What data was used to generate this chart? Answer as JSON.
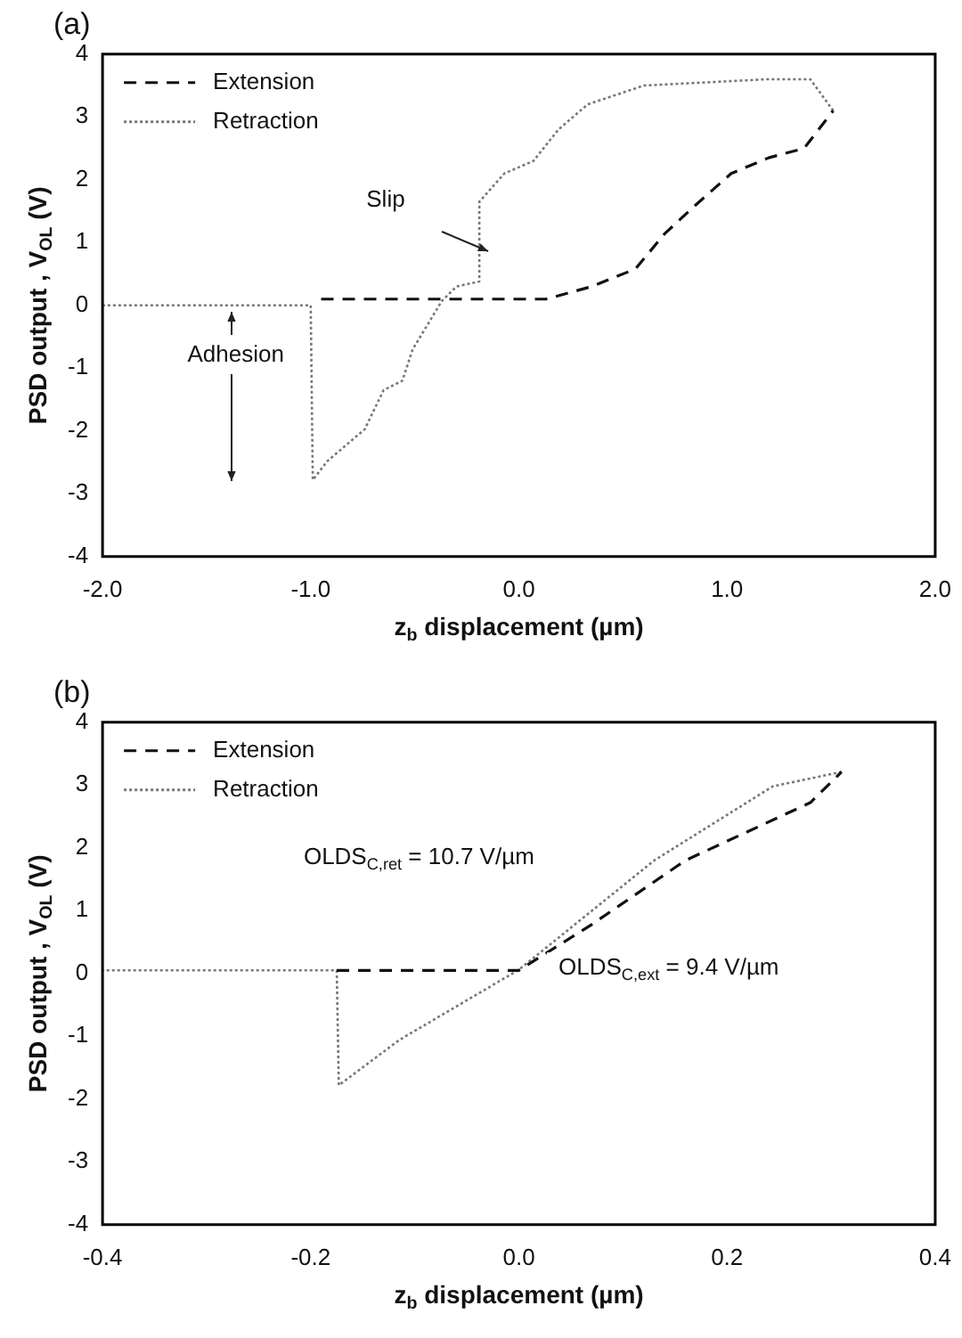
{
  "chart_data": [
    {
      "type": "line",
      "title": "(a)",
      "xlabel": "z$_{b}$ displacement (µm)",
      "ylabel": "PSD output , V$_{OL}$ (V)",
      "series": [
        {
          "name": "Extension",
          "color": "#111111",
          "line_style": "dashed",
          "x": [
            -0.95,
            -0.5,
            0.0,
            0.13,
            0.35,
            0.56,
            0.7,
            0.85,
            1.02,
            1.2,
            1.37,
            1.51
          ],
          "values": [
            0.1,
            0.1,
            0.1,
            0.1,
            0.3,
            0.58,
            1.14,
            1.6,
            2.1,
            2.35,
            2.5,
            3.1
          ]
        },
        {
          "name": "Retraction",
          "color": "#777777",
          "line_style": "dotted",
          "x": [
            1.51,
            1.4,
            1.19,
            0.6,
            0.33,
            0.19,
            0.07,
            -0.07,
            -0.19,
            -0.19,
            -0.3,
            -0.37,
            -0.51,
            -0.56,
            -0.65,
            -0.74,
            -0.92,
            -0.99,
            -1.0,
            -2.0
          ],
          "values": [
            3.1,
            3.6,
            3.6,
            3.5,
            3.2,
            2.8,
            2.3,
            2.1,
            1.65,
            0.38,
            0.3,
            0.07,
            -0.7,
            -1.2,
            -1.35,
            -1.97,
            -2.48,
            -2.78,
            0,
            0
          ]
        }
      ],
      "xlim": [
        -2.0,
        2.0
      ],
      "xticks": [
        {
          "value": -2,
          "label": "-2.0"
        },
        {
          "value": -1,
          "label": "-1.0"
        },
        {
          "value": 0,
          "label": "0.0"
        },
        {
          "value": 1,
          "label": "1.0"
        },
        {
          "value": 2,
          "label": "2.0"
        }
      ],
      "ylim": [
        -4,
        4
      ],
      "yticks": [
        -4,
        -3,
        -2,
        -1,
        0,
        1,
        2,
        3,
        4
      ],
      "annotations": [
        "Adhesion",
        "Slip"
      ],
      "grid": false,
      "legend": "top left",
      "marker": "none"
    },
    {
      "type": "line",
      "title": "(b)",
      "xlabel": "z$_{b}$ displacement (µm)",
      "ylabel": "PSD output , V$_{OL}$ (V)",
      "series": [
        {
          "name": "Extension",
          "color": "#111111",
          "line_style": "dashed",
          "x": [
            -0.175,
            0.0,
            0.07,
            0.16,
            0.28,
            0.31
          ],
          "values": [
            0.05,
            0.05,
            0.78,
            1.8,
            2.72,
            3.21
          ]
        },
        {
          "name": "Retraction",
          "color": "#777777",
          "line_style": "dotted",
          "x": [
            0.31,
            0.244,
            0.13,
            0.0,
            -0.115,
            -0.173,
            -0.175,
            -0.4
          ],
          "values": [
            3.21,
            2.98,
            1.8,
            0.06,
            -1.06,
            -1.78,
            0.05,
            0.05
          ]
        }
      ],
      "xlim": [
        -0.4,
        0.4
      ],
      "xticks": [
        {
          "value": -0.4,
          "label": "-0.4"
        },
        {
          "value": -0.2,
          "label": "-0.2"
        },
        {
          "value": 0,
          "label": "0.0"
        },
        {
          "value": 0.2,
          "label": "0.2"
        },
        {
          "value": 0.4,
          "label": "0.4"
        }
      ],
      "ylim": [
        -4,
        4
      ],
      "yticks": [
        -4,
        -3,
        -2,
        -1,
        0,
        1,
        2,
        3,
        4
      ],
      "annotations": [
        "OLDS$_{C,ret}$ = 10.7 V/µm",
        "OLDS$_{C,ext}$ = 9.4 V/µm"
      ],
      "grid": false,
      "legend": "top left",
      "marker": "none"
    }
  ]
}
